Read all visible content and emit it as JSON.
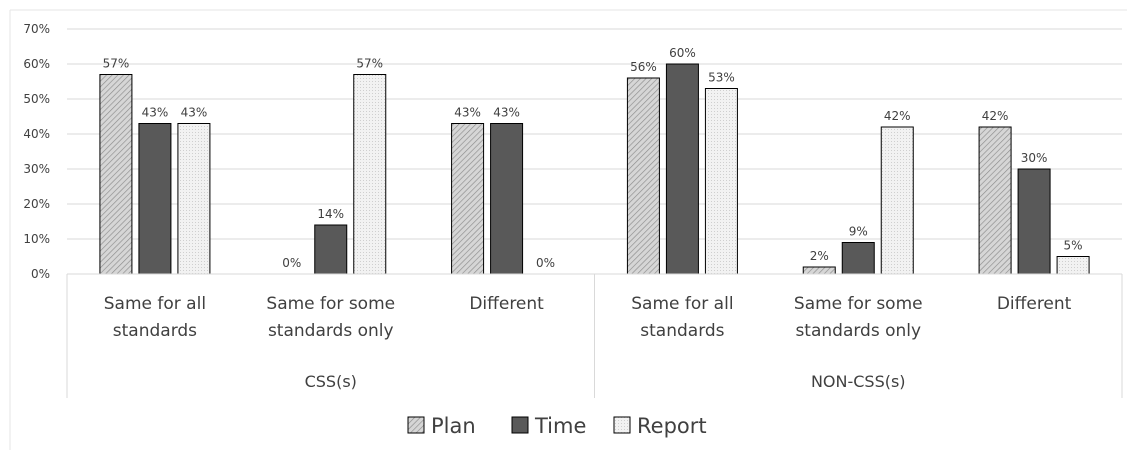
{
  "chart_data": {
    "type": "bar",
    "title": "",
    "xlabel": "",
    "ylabel": "",
    "ylim": [
      0,
      70
    ],
    "yticks": [
      "0%",
      "10%",
      "20%",
      "30%",
      "40%",
      "50%",
      "60%",
      "70%"
    ],
    "grid": true,
    "legend_position": "bottom",
    "value_suffix": "%",
    "groups": [
      {
        "name": "CSS(s)",
        "categories": [
          [
            "Same for all",
            "standards"
          ],
          [
            "Same for some",
            "standards only"
          ],
          [
            "Different"
          ]
        ]
      },
      {
        "name": "NON-CSS(s)",
        "categories": [
          [
            "Same for all",
            "standards"
          ],
          [
            "Same for some",
            "standards only"
          ],
          [
            "Different"
          ]
        ]
      }
    ],
    "series": [
      {
        "name": "Plan",
        "values": [
          57,
          0,
          43,
          56,
          2,
          42
        ]
      },
      {
        "name": "Time",
        "values": [
          43,
          14,
          43,
          60,
          9,
          30
        ]
      },
      {
        "name": "Report",
        "values": [
          43,
          57,
          0,
          53,
          42,
          5
        ]
      }
    ],
    "colors": {
      "Plan": "#c8c8c8",
      "Time": "#595959",
      "Report": "#eeeeee",
      "grid": "#d9d9d9",
      "axis": "#d9d9d9",
      "text": "#404040"
    }
  }
}
